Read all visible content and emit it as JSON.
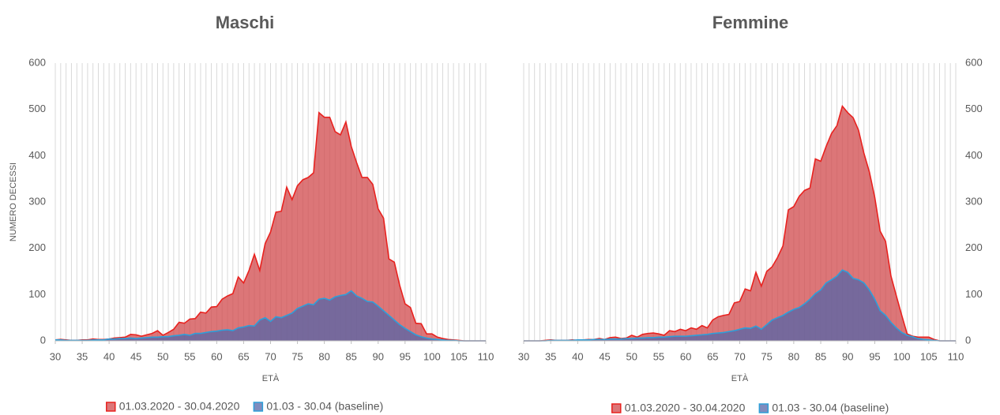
{
  "chart_data": [
    {
      "type": "area",
      "title": "Maschi",
      "xlabel": "ETÀ",
      "ylabel": "NUMERO DECESSI",
      "y_axis_side": "left",
      "grid": "x",
      "legend": "bottom",
      "x": [
        30,
        31,
        32,
        33,
        34,
        35,
        36,
        37,
        38,
        39,
        40,
        41,
        42,
        43,
        44,
        45,
        46,
        47,
        48,
        49,
        50,
        51,
        52,
        53,
        54,
        55,
        56,
        57,
        58,
        59,
        60,
        61,
        62,
        63,
        64,
        65,
        66,
        67,
        68,
        69,
        70,
        71,
        72,
        73,
        74,
        75,
        76,
        77,
        78,
        79,
        80,
        81,
        82,
        83,
        84,
        85,
        86,
        87,
        88,
        89,
        90,
        91,
        92,
        93,
        94,
        95,
        96,
        97,
        98,
        99,
        100,
        101,
        102,
        103,
        104,
        105,
        106,
        107,
        108,
        109,
        110
      ],
      "xlim": [
        30,
        110
      ],
      "xticks": [
        30,
        35,
        40,
        45,
        50,
        55,
        60,
        65,
        70,
        75,
        80,
        85,
        90,
        95,
        100,
        105,
        110
      ],
      "ylim": [
        0,
        600
      ],
      "yticks": [
        0,
        100,
        200,
        300,
        400,
        500,
        600
      ],
      "series": [
        {
          "name": "01.03.2020 - 30.04.2020",
          "color": "#e8221f",
          "fill": "#d0484b",
          "values": [
            2,
            3,
            2,
            1,
            1,
            2,
            2,
            4,
            3,
            3,
            4,
            6,
            7,
            8,
            14,
            13,
            10,
            13,
            16,
            22,
            12,
            18,
            25,
            40,
            38,
            47,
            48,
            62,
            60,
            73,
            74,
            90,
            97,
            102,
            138,
            125,
            152,
            187,
            152,
            210,
            235,
            278,
            280,
            332,
            305,
            335,
            348,
            353,
            363,
            493,
            483,
            483,
            452,
            445,
            473,
            420,
            385,
            353,
            353,
            338,
            285,
            265,
            177,
            170,
            120,
            80,
            72,
            38,
            37,
            15,
            15,
            8,
            5,
            3,
            2,
            1,
            0,
            0,
            0,
            0,
            0
          ]
        },
        {
          "name": "01.03 - 30.04 (baseline)",
          "color": "#2e9fd9",
          "fill": "#5466a8",
          "values": [
            2,
            2,
            1,
            1,
            1,
            1,
            1,
            2,
            2,
            2,
            4,
            4,
            5,
            5,
            6,
            5,
            6,
            7,
            8,
            8,
            9,
            9,
            11,
            12,
            14,
            12,
            16,
            16,
            18,
            20,
            21,
            23,
            24,
            22,
            28,
            30,
            33,
            32,
            45,
            50,
            42,
            52,
            50,
            55,
            60,
            70,
            75,
            80,
            78,
            90,
            92,
            88,
            95,
            98,
            100,
            108,
            97,
            92,
            85,
            84,
            75,
            65,
            55,
            45,
            35,
            27,
            20,
            13,
            9,
            6,
            4,
            3,
            2,
            1,
            1,
            0,
            0,
            0,
            0,
            0,
            0
          ]
        }
      ]
    },
    {
      "type": "area",
      "title": "Femmine",
      "xlabel": "ETÀ",
      "y_axis_side": "right",
      "grid": "x",
      "legend": "bottom",
      "x": [
        30,
        31,
        32,
        33,
        34,
        35,
        36,
        37,
        38,
        39,
        40,
        41,
        42,
        43,
        44,
        45,
        46,
        47,
        48,
        49,
        50,
        51,
        52,
        53,
        54,
        55,
        56,
        57,
        58,
        59,
        60,
        61,
        62,
        63,
        64,
        65,
        66,
        67,
        68,
        69,
        70,
        71,
        72,
        73,
        74,
        75,
        76,
        77,
        78,
        79,
        80,
        81,
        82,
        83,
        84,
        85,
        86,
        87,
        88,
        89,
        90,
        91,
        92,
        93,
        94,
        95,
        96,
        97,
        98,
        99,
        100,
        101,
        102,
        103,
        104,
        105,
        106,
        107,
        108,
        109,
        110
      ],
      "xlim": [
        30,
        110
      ],
      "xticks": [
        30,
        35,
        40,
        45,
        50,
        55,
        60,
        65,
        70,
        75,
        80,
        85,
        90,
        95,
        100,
        105,
        110
      ],
      "ylim": [
        0,
        600
      ],
      "yticks": [
        0,
        100,
        200,
        300,
        400,
        500,
        600
      ],
      "series": [
        {
          "name": "01.03.2020 - 30.04.2020",
          "color": "#e8221f",
          "fill": "#d0484b",
          "values": [
            0,
            0,
            0,
            0,
            1,
            2,
            1,
            1,
            1,
            2,
            1,
            2,
            3,
            3,
            5,
            3,
            7,
            8,
            5,
            6,
            12,
            8,
            14,
            16,
            17,
            15,
            12,
            22,
            20,
            25,
            22,
            28,
            25,
            33,
            28,
            45,
            52,
            55,
            57,
            82,
            85,
            112,
            108,
            148,
            118,
            150,
            160,
            180,
            205,
            283,
            290,
            312,
            325,
            330,
            393,
            388,
            420,
            448,
            465,
            507,
            493,
            482,
            455,
            405,
            365,
            310,
            237,
            215,
            140,
            97,
            55,
            15,
            10,
            8,
            8,
            8,
            3,
            0,
            0,
            0,
            0
          ]
        },
        {
          "name": "01.03 - 30.04 (baseline)",
          "color": "#2e9fd9",
          "fill": "#5466a8",
          "values": [
            0,
            0,
            0,
            0,
            0,
            1,
            1,
            1,
            1,
            1,
            2,
            2,
            2,
            3,
            3,
            3,
            4,
            4,
            4,
            5,
            5,
            6,
            6,
            7,
            7,
            8,
            8,
            9,
            10,
            10,
            10,
            11,
            12,
            13,
            14,
            16,
            17,
            18,
            20,
            22,
            25,
            28,
            27,
            32,
            25,
            35,
            45,
            50,
            55,
            62,
            68,
            72,
            80,
            90,
            102,
            110,
            125,
            132,
            140,
            153,
            148,
            135,
            132,
            125,
            110,
            90,
            65,
            55,
            40,
            28,
            18,
            12,
            9,
            5,
            3,
            2,
            1,
            0,
            0,
            0,
            0
          ]
        }
      ]
    }
  ]
}
